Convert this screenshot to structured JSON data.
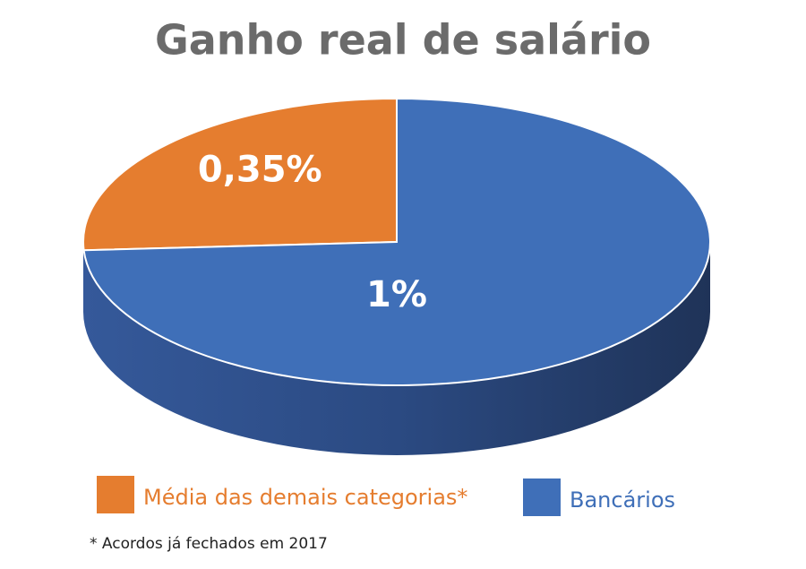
{
  "chart_data": {
    "type": "pie",
    "title": "Ganho real de salário",
    "categories": [
      "Média das demais categorias*",
      "Bancários"
    ],
    "series": [
      {
        "name": "Ganho real",
        "values": [
          0.35,
          1
        ],
        "value_labels": [
          "0,35%",
          "1%"
        ],
        "colors": [
          "#e57d2f",
          "#3f6fb8"
        ]
      }
    ],
    "note": "* Acordos já fechados em 2017"
  }
}
